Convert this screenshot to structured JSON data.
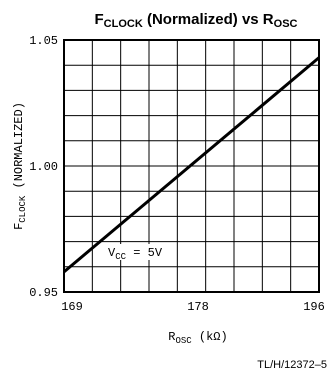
{
  "chart_data": {
    "type": "line",
    "title": {
      "part1": "F",
      "part1_sub": "CLOCK",
      "part2": " (Normalized) vs R",
      "part2_sub": "OSC"
    },
    "xlabel": {
      "main": "R",
      "sub": "OSC",
      "unit": " (kΩ)"
    },
    "ylabel": {
      "main": "F",
      "sub": "CLOCK",
      "rest": " (NORMALIZED)"
    },
    "x_ticks": [
      "169",
      "178",
      "196"
    ],
    "y_ticks": [
      "1.05",
      "1.00",
      "0.95"
    ],
    "xlim": [
      169,
      196
    ],
    "ylim": [
      0.95,
      1.05
    ],
    "series": [
      {
        "x": [
          169,
          196
        ],
        "y": [
          0.958,
          1.043
        ]
      }
    ],
    "annotation": {
      "main": "V",
      "sub": "CC",
      "rest": " = 5V"
    },
    "grid": true
  },
  "figure_id": "TL/H/12372–5"
}
